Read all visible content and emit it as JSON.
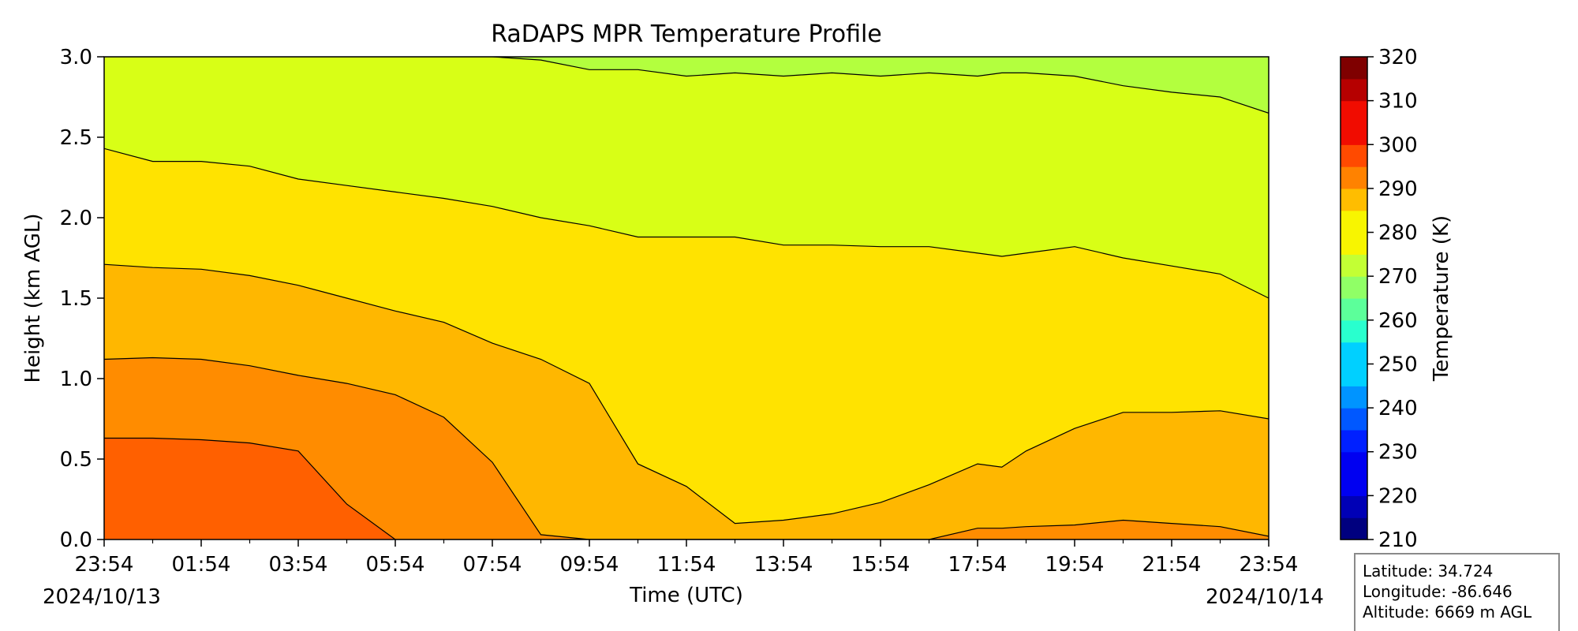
{
  "chart_data": {
    "type": "heatmap",
    "subtype": "filled-contour",
    "title": "RaDAPS MPR Temperature Profile",
    "xlabel": "Time (UTC)",
    "ylabel": "Height (km AGL)",
    "x_ticks": [
      "23:54",
      "01:54",
      "03:54",
      "05:54",
      "07:54",
      "09:54",
      "11:54",
      "13:54",
      "15:54",
      "17:54",
      "19:54",
      "21:54",
      "23:54"
    ],
    "x_range_hours": [
      0,
      24
    ],
    "start_date": "2024/10/13",
    "end_date": "2024/10/14",
    "y_ticks": [
      "0.0",
      "0.5",
      "1.0",
      "1.5",
      "2.0",
      "2.5",
      "3.0"
    ],
    "ylim": [
      0,
      3
    ],
    "colorbar": {
      "label": "Temperature (K)",
      "ticks": [
        "210",
        "220",
        "230",
        "240",
        "250",
        "260",
        "270",
        "280",
        "290",
        "300",
        "310",
        "320"
      ],
      "range": [
        210,
        320
      ],
      "level_step": 5,
      "colormap": "jet",
      "level_colors": [
        "#00007f",
        "#0000b6",
        "#0000f1",
        "#0020ff",
        "#0058ff",
        "#0094ff",
        "#00d0ff",
        "#29ffce",
        "#5cff9a",
        "#90ff66",
        "#c3ff34",
        "#f8f500",
        "#ffbd00",
        "#ff8200",
        "#ff4a00",
        "#f10c00",
        "#b60000",
        "#7f0000"
      ]
    },
    "temperature_bands_K": [
      {
        "range": [
          290,
          295
        ],
        "color": "#ff6000",
        "label": "290-295"
      },
      {
        "range": [
          285,
          290
        ],
        "color": "#ff8c00",
        "label": "285-290"
      },
      {
        "range": [
          280,
          285
        ],
        "color": "#ffb700",
        "label": "280-285"
      },
      {
        "range": [
          275,
          280
        ],
        "color": "#ffe300",
        "label": "275-280"
      },
      {
        "range": [
          270,
          275
        ],
        "color": "#d8ff16",
        "label": "270-275"
      },
      {
        "range": [
          265,
          270
        ],
        "color": "#b3ff3e",
        "label": "265-270"
      }
    ],
    "contour_boundaries_km": {
      "hours": [
        0,
        1,
        2,
        3,
        4,
        5,
        6,
        7,
        8,
        9,
        10,
        11,
        12,
        13,
        14,
        15,
        16,
        17,
        18,
        18.5,
        19,
        20,
        21,
        22,
        23,
        24
      ],
      "K290": [
        0.63,
        0.63,
        0.62,
        0.6,
        0.55,
        0.22,
        0.0,
        0.0,
        0.0,
        0.0,
        0.0,
        0.0,
        0.0,
        0.0,
        0.0,
        0.0,
        0.0,
        0.0,
        0.0,
        0.0,
        0.0,
        0.0,
        0.0,
        0.0,
        0.0,
        0.0
      ],
      "K285": [
        1.12,
        1.13,
        1.12,
        1.08,
        1.02,
        0.97,
        0.9,
        0.76,
        0.48,
        0.03,
        0.0,
        0.0,
        0.0,
        0.0,
        0.0,
        0.0,
        0.0,
        0.0,
        0.07,
        0.07,
        0.08,
        0.09,
        0.12,
        0.1,
        0.08,
        0.02
      ],
      "K280": [
        1.71,
        1.69,
        1.68,
        1.64,
        1.58,
        1.5,
        1.42,
        1.35,
        1.22,
        1.12,
        0.97,
        0.47,
        0.33,
        0.1,
        0.12,
        0.16,
        0.23,
        0.34,
        0.47,
        0.45,
        0.55,
        0.69,
        0.79,
        0.79,
        0.8,
        0.75
      ],
      "K275": [
        2.43,
        2.35,
        2.35,
        2.32,
        2.24,
        2.2,
        2.16,
        2.12,
        2.07,
        2.0,
        1.95,
        1.88,
        1.88,
        1.88,
        1.83,
        1.83,
        1.82,
        1.82,
        1.78,
        1.76,
        1.78,
        1.82,
        1.75,
        1.7,
        1.65,
        1.5
      ],
      "K270": [
        3.0,
        3.0,
        3.0,
        3.0,
        3.0,
        3.0,
        3.0,
        3.0,
        3.0,
        2.98,
        2.92,
        2.92,
        2.88,
        2.9,
        2.88,
        2.9,
        2.88,
        2.9,
        2.88,
        2.9,
        2.9,
        2.88,
        2.82,
        2.78,
        2.75,
        2.65
      ]
    },
    "contour_line_color": "#000000"
  },
  "info_box": {
    "latitude": "Latitude: 34.724",
    "longitude": "Longitude: -86.646",
    "altitude": "Altitude: 6669 m AGL"
  }
}
